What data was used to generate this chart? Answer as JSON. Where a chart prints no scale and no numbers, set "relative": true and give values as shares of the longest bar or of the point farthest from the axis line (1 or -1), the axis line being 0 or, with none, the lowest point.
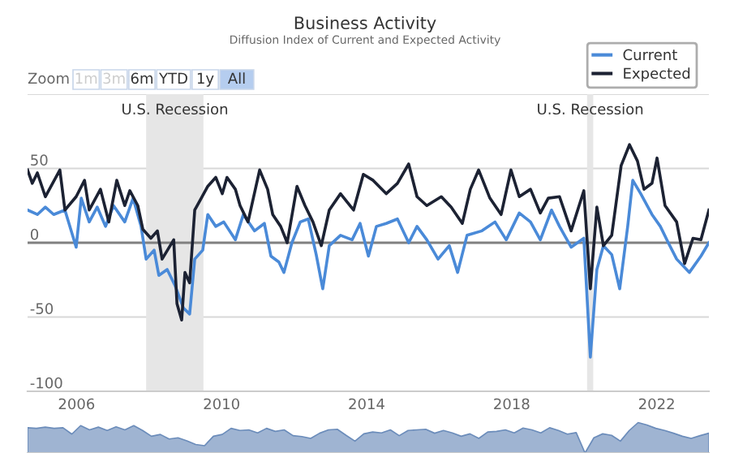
{
  "chart_data": [
    {
      "type": "line",
      "title": "Business Activity",
      "subtitle": "Diffusion Index of Current and Expected Activity",
      "annotations": [
        "Zoom",
        "1m",
        "3m",
        "6m",
        "YTD",
        "1y",
        "All"
      ],
      "series": [
        {
          "name": "Current",
          "color": "#4a8ad8",
          "x": [
            2004.65,
            2004.92,
            2005.14,
            2005.37,
            2005.68,
            2005.99,
            2006.13,
            2006.35,
            2006.57,
            2006.8,
            2007.02,
            2007.33,
            2007.56,
            2007.78,
            2007.92,
            2008.14,
            2008.27,
            2008.5,
            2008.72,
            2008.95,
            2009.12,
            2009.26,
            2009.48,
            2009.62,
            2009.84,
            2010.06,
            2010.38,
            2010.6,
            2010.91,
            2011.18,
            2011.36,
            2011.58,
            2011.72,
            2011.94,
            2012.17,
            2012.39,
            2012.61,
            2012.79,
            2012.97,
            2013.28,
            2013.6,
            2013.82,
            2014.05,
            2014.27,
            2014.54,
            2014.85,
            2015.16,
            2015.39,
            2015.66,
            2015.97,
            2016.28,
            2016.51,
            2016.77,
            2017.18,
            2017.54,
            2017.85,
            2018.21,
            2018.52,
            2018.79,
            2019.1,
            2019.32,
            2019.64,
            2019.99,
            2020.17,
            2020.35,
            2020.53,
            2020.76,
            2020.98,
            2021.2,
            2021.34,
            2021.56,
            2021.87,
            2022.1,
            2022.32,
            2022.55,
            2022.9,
            2023.22,
            2023.44
          ],
          "values": [
            22,
            19,
            24,
            19,
            22,
            -3,
            30,
            14,
            24,
            11,
            25,
            14,
            30,
            11,
            -11,
            -5,
            -22,
            -18,
            -29,
            -44,
            -48,
            -11,
            -5,
            19,
            11,
            14,
            2,
            19,
            8,
            13,
            -9,
            -13,
            -20,
            0,
            14,
            16,
            -8,
            -31,
            -2,
            5,
            2,
            13,
            -9,
            11,
            13,
            16,
            0,
            11,
            2,
            -11,
            -2,
            -20,
            5,
            8,
            14,
            2,
            20,
            14,
            2,
            22,
            11,
            -3,
            3,
            -77,
            -18,
            -2,
            -8,
            -31,
            11,
            42,
            33,
            19,
            11,
            0,
            -11,
            -20,
            -9,
            0
          ]
        },
        {
          "name": "Expected",
          "color": "#1c2233",
          "x": [
            2004.65,
            2004.78,
            2004.92,
            2005.14,
            2005.54,
            2005.68,
            2005.99,
            2006.22,
            2006.35,
            2006.66,
            2006.89,
            2007.11,
            2007.33,
            2007.47,
            2007.69,
            2007.83,
            2008.05,
            2008.23,
            2008.36,
            2008.68,
            2008.77,
            2008.9,
            2008.99,
            2009.12,
            2009.26,
            2009.44,
            2009.62,
            2009.84,
            2010.02,
            2010.15,
            2010.38,
            2010.51,
            2010.73,
            2011.05,
            2011.27,
            2011.41,
            2011.63,
            2011.81,
            2012.08,
            2012.3,
            2012.52,
            2012.75,
            2012.97,
            2013.28,
            2013.64,
            2013.91,
            2014.18,
            2014.54,
            2014.85,
            2015.16,
            2015.39,
            2015.66,
            2016.06,
            2016.33,
            2016.64,
            2016.86,
            2017.09,
            2017.4,
            2017.71,
            2017.98,
            2018.21,
            2018.52,
            2018.79,
            2019.01,
            2019.32,
            2019.64,
            2019.99,
            2020.17,
            2020.35,
            2020.53,
            2020.76,
            2021.02,
            2021.25,
            2021.47,
            2021.65,
            2021.87,
            2022.01,
            2022.23,
            2022.55,
            2022.77,
            2023.0,
            2023.22,
            2023.44
          ],
          "values": [
            49,
            40,
            47,
            31,
            49,
            22,
            31,
            42,
            22,
            36,
            14,
            42,
            25,
            35,
            25,
            9,
            3,
            8,
            -11,
            2,
            -41,
            -52,
            -20,
            -27,
            22,
            30,
            38,
            44,
            33,
            44,
            36,
            25,
            14,
            49,
            36,
            19,
            11,
            0,
            38,
            25,
            14,
            -2,
            22,
            33,
            22,
            46,
            42,
            33,
            40,
            53,
            31,
            25,
            31,
            24,
            13,
            36,
            49,
            30,
            19,
            49,
            31,
            36,
            20,
            30,
            31,
            8,
            35,
            -31,
            24,
            -2,
            5,
            52,
            66,
            55,
            36,
            40,
            57,
            25,
            14,
            -14,
            3,
            2,
            22
          ]
        }
      ],
      "xlim": [
        2004.65,
        2023.44
      ],
      "xticks": [
        2006,
        2010,
        2014,
        2018,
        2022
      ],
      "ylim": [
        -100,
        100
      ],
      "yticks": [
        -100,
        -50,
        0,
        50,
        {
          "value": 100,
          "label": null
        }
      ],
      "grid": "y",
      "legend": "top right",
      "ref_lines": [
        {
          "axis": "y",
          "value": 0,
          "color": "#808080"
        }
      ],
      "bands": [
        {
          "axis": "x",
          "from": 2007.92,
          "to": 2009.5,
          "label": "U.S. Recession",
          "color": "#e6e6e6"
        },
        {
          "axis": "x",
          "from": 2020.08,
          "to": 2020.25,
          "label": "U.S. Recession",
          "color": "#e6e6e6"
        }
      ]
    },
    {
      "type": "area",
      "relative": true,
      "categories": [
        null,
        null,
        null,
        null,
        null,
        null,
        null,
        null,
        null,
        null,
        null,
        null,
        null,
        null,
        null,
        null,
        null,
        null,
        null,
        null,
        null,
        null,
        null,
        null,
        null,
        null,
        null,
        null,
        null,
        null,
        null,
        null,
        null,
        null,
        null,
        null,
        null,
        null,
        null,
        null,
        null,
        null,
        null,
        null,
        null,
        null,
        null,
        null,
        null,
        null,
        null,
        null,
        null,
        null,
        null,
        null,
        null,
        null,
        null,
        null,
        null,
        null,
        null,
        null,
        null,
        null,
        null,
        null,
        null,
        null,
        null,
        null,
        null,
        null,
        null,
        null,
        null,
        null
      ],
      "series": [
        {
          "color": "#9fb4d2",
          "values": [
            0.83,
            0.81,
            0.85,
            0.81,
            0.83,
            0.62,
            0.9,
            0.76,
            0.85,
            0.74,
            0.86,
            0.76,
            0.9,
            0.74,
            0.55,
            0.61,
            0.46,
            0.5,
            0.4,
            0.28,
            0.24,
            0.55,
            0.61,
            0.81,
            0.74,
            0.76,
            0.66,
            0.81,
            0.71,
            0.76,
            0.57,
            0.54,
            0.48,
            0.65,
            0.76,
            0.78,
            0.58,
            0.39,
            0.63,
            0.69,
            0.66,
            0.76,
            0.57,
            0.74,
            0.76,
            0.78,
            0.65,
            0.74,
            0.66,
            0.55,
            0.63,
            0.48,
            0.69,
            0.71,
            0.76,
            0.66,
            0.82,
            0.76,
            0.66,
            0.83,
            0.74,
            0.62,
            0.67,
            0,
            0.5,
            0.63,
            0.58,
            0.39,
            0.74,
            1,
            0.92,
            0.81,
            0.74,
            0.65,
            0.55,
            0.48,
            0.57,
            0.65
          ]
        }
      ]
    }
  ]
}
